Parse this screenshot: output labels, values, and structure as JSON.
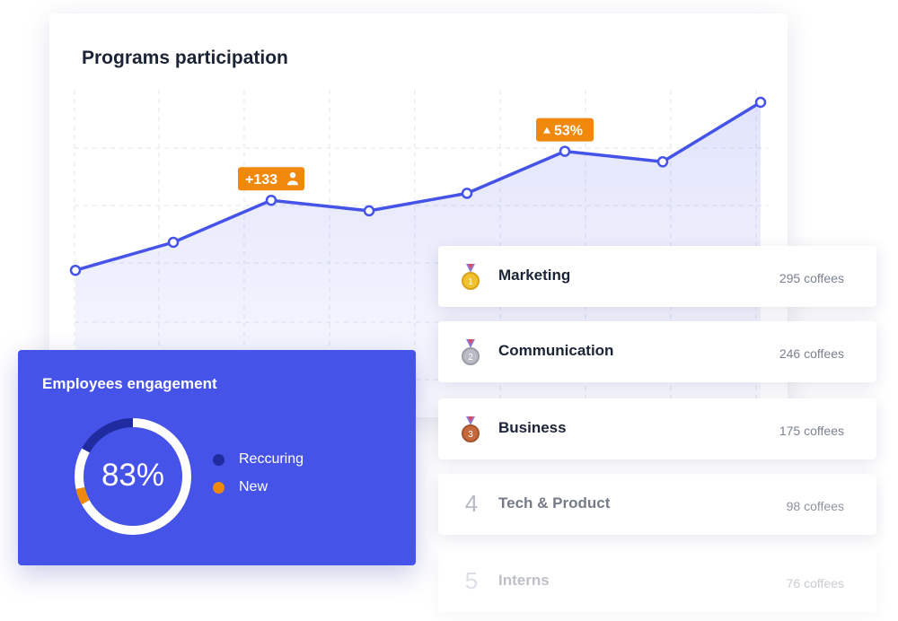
{
  "chart_panel": {
    "title": "Programs participation"
  },
  "chart_data": {
    "type": "area",
    "title": "Programs participation",
    "x": [
      1,
      2,
      3,
      4,
      5,
      6,
      7,
      8
    ],
    "values": [
      42,
      50,
      62,
      59,
      64,
      76,
      73,
      90
    ],
    "ylim": [
      0,
      100
    ],
    "grid": true,
    "series_color": "#4553e8",
    "annotations": [
      {
        "point": 3,
        "text": "+133",
        "icon": "user-icon"
      },
      {
        "point": 6,
        "text": "53%",
        "icon": "up-triangle-icon"
      }
    ]
  },
  "engagement": {
    "title": "Employees engagement",
    "value_label": "83%",
    "donut_fraction": 0.83,
    "legend": [
      {
        "label": "Reccuring",
        "color": "#1f2b9e"
      },
      {
        "label": "New",
        "color": "#f0890b"
      }
    ],
    "colors": {
      "card": "#4553e8",
      "track": "#ffffff",
      "recurring": "#1f2b9e",
      "new": "#f0890b"
    }
  },
  "ranking": [
    {
      "rank": "1",
      "icon": "gold-medal-icon",
      "name": "Marketing",
      "coffees": "295 coffees"
    },
    {
      "rank": "2",
      "icon": "silver-medal-icon",
      "name": "Communication",
      "coffees": "246 coffees"
    },
    {
      "rank": "3",
      "icon": "bronze-medal-icon",
      "name": "Business",
      "coffees": "175 coffees"
    },
    {
      "rank": "4",
      "name": "Tech & Product",
      "coffees": "98 coffees"
    },
    {
      "rank": "5",
      "name": "Interns",
      "coffees": "76 coffees"
    }
  ],
  "colors": {
    "accent": "#4553e8",
    "badge": "#f0890b",
    "title_text": "#1b2336",
    "muted_text": "#7a8191"
  }
}
